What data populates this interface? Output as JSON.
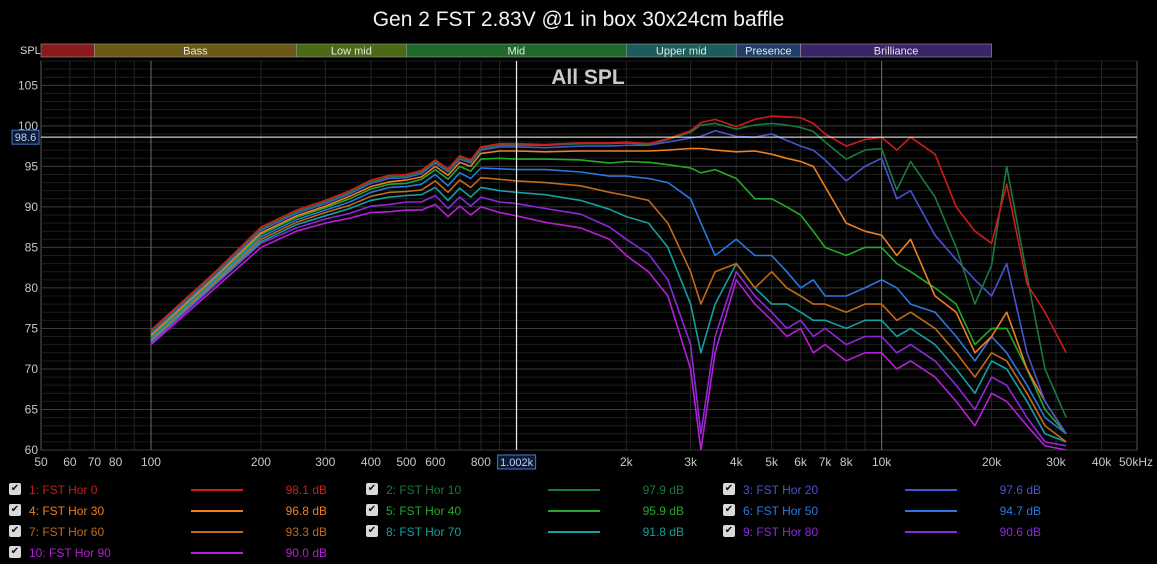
{
  "title": "Gen 2 FST 2.83V @1 in box 30x24cm baffle",
  "chart_data": {
    "type": "line",
    "title": "Gen 2 FST 2.83V @1 in box 30x24cm baffle",
    "plot_label": "All SPL",
    "xlabel": "",
    "ylabel": "SPL",
    "x_scale": "log",
    "xlim": [
      50,
      50000
    ],
    "ylim": [
      60,
      108
    ],
    "grid": true,
    "x_ticks": [
      {
        "v": 50,
        "label": "50"
      },
      {
        "v": 60,
        "label": "60"
      },
      {
        "v": 70,
        "label": "70"
      },
      {
        "v": 80,
        "label": "80"
      },
      {
        "v": 100,
        "label": "100"
      },
      {
        "v": 200,
        "label": "200"
      },
      {
        "v": 300,
        "label": "300"
      },
      {
        "v": 400,
        "label": "400"
      },
      {
        "v": 500,
        "label": "500"
      },
      {
        "v": 600,
        "label": "600"
      },
      {
        "v": 800,
        "label": "800"
      },
      {
        "v": 2000,
        "label": "2k"
      },
      {
        "v": 3000,
        "label": "3k"
      },
      {
        "v": 4000,
        "label": "4k"
      },
      {
        "v": 5000,
        "label": "5k"
      },
      {
        "v": 6000,
        "label": "6k"
      },
      {
        "v": 7000,
        "label": "7k"
      },
      {
        "v": 8000,
        "label": "8k"
      },
      {
        "v": 10000,
        "label": "10k"
      },
      {
        "v": 20000,
        "label": "20k"
      },
      {
        "v": 30000,
        "label": "30k"
      },
      {
        "v": 40000,
        "label": "40k"
      },
      {
        "v": 50000,
        "label": "50kHz"
      }
    ],
    "y_ticks": [
      60,
      65,
      70,
      75,
      80,
      85,
      90,
      95,
      100,
      105
    ],
    "cursor": {
      "x": 1002,
      "x_label": "1.002k",
      "y": 98.6,
      "y_label": "98.6"
    },
    "bands": [
      {
        "label": "",
        "from": 40,
        "to": 70,
        "color": "#8b1a1a"
      },
      {
        "label": "Bass",
        "from": 70,
        "to": 250,
        "color": "#6b5a16"
      },
      {
        "label": "Low mid",
        "from": 250,
        "to": 500,
        "color": "#4c6a16"
      },
      {
        "label": "Mid",
        "from": 500,
        "to": 2000,
        "color": "#1d6a2a"
      },
      {
        "label": "Upper mid",
        "from": 2000,
        "to": 4000,
        "color": "#1a5d5a"
      },
      {
        "label": "Presence",
        "from": 4000,
        "to": 6000,
        "color": "#1d3f6a"
      },
      {
        "label": "Brilliance",
        "from": 6000,
        "to": 20000,
        "color": "#3a2468"
      }
    ],
    "shared_x": [
      100,
      150,
      200,
      250,
      300,
      350,
      400,
      450,
      500,
      550,
      600,
      650,
      700,
      750,
      800,
      900,
      1000,
      1200,
      1500,
      1800,
      2000,
      2300,
      2600,
      3000,
      3200,
      3500,
      4000,
      4500,
      5000,
      5500,
      6000,
      6500,
      7000,
      8000,
      9000,
      10000,
      11000,
      12000,
      14000,
      16000,
      18000,
      20000,
      22000,
      25000,
      28000,
      32000
    ],
    "series": [
      {
        "name": "1: FST Hor 0",
        "value": "98.1 dB",
        "color": "#d01b1b",
        "y": [
          74.8,
          82.0,
          87.5,
          89.6,
          90.8,
          92.0,
          93.3,
          93.9,
          94.0,
          94.5,
          95.8,
          94.7,
          96.3,
          95.8,
          97.4,
          97.8,
          97.8,
          97.7,
          97.9,
          97.9,
          98.0,
          97.8,
          98.4,
          99.4,
          100.4,
          100.8,
          99.9,
          100.8,
          101.2,
          101.1,
          101.0,
          100.3,
          99.0,
          97.5,
          98.3,
          98.6,
          97.0,
          98.6,
          96.5,
          90.0,
          87.0,
          85.5,
          92.8,
          80.5,
          77.0,
          72.0
        ]
      },
      {
        "name": "2: FST Hor 10",
        "value": "97.9 dB",
        "color": "#1a7a3c",
        "y": [
          74.6,
          81.8,
          87.3,
          89.4,
          90.6,
          91.8,
          93.1,
          93.7,
          93.8,
          94.3,
          95.6,
          94.5,
          96.1,
          95.6,
          97.2,
          97.6,
          97.6,
          97.6,
          97.8,
          97.8,
          97.9,
          97.7,
          98.3,
          99.2,
          100.1,
          100.3,
          99.6,
          100.1,
          100.3,
          100.1,
          99.8,
          99.3,
          98.0,
          95.9,
          97.0,
          97.2,
          92.1,
          95.6,
          91.2,
          85.0,
          78.0,
          82.8,
          95.0,
          81.5,
          70.0,
          64.0
        ]
      },
      {
        "name": "3: FST Hor 20",
        "value": "97.6 dB",
        "color": "#4a52d0",
        "y": [
          74.4,
          81.6,
          87.1,
          89.2,
          90.4,
          91.6,
          92.9,
          93.5,
          93.6,
          94.1,
          95.4,
          94.3,
          95.9,
          95.4,
          97.0,
          97.4,
          97.4,
          97.3,
          97.5,
          97.5,
          97.6,
          97.6,
          98.0,
          98.5,
          98.7,
          99.4,
          98.7,
          98.6,
          99.0,
          98.2,
          97.5,
          97.0,
          95.8,
          93.2,
          95.0,
          96.0,
          91.0,
          92.0,
          86.5,
          83.5,
          81.0,
          79.0,
          83.0,
          72.0,
          66.0,
          62.0
        ]
      },
      {
        "name": "4: FST Hor 30",
        "value": "96.8 dB",
        "color": "#ee7f22",
        "y": [
          74.2,
          81.4,
          86.8,
          88.9,
          90.1,
          91.3,
          92.5,
          93.1,
          93.3,
          93.7,
          95.0,
          93.9,
          95.5,
          95.0,
          96.6,
          96.9,
          96.9,
          96.8,
          96.9,
          96.9,
          96.9,
          96.9,
          97.0,
          97.2,
          97.2,
          97.0,
          96.8,
          96.9,
          96.5,
          96.0,
          95.6,
          95.0,
          92.5,
          88.0,
          87.0,
          86.5,
          84.0,
          86.0,
          79.0,
          77.0,
          72.0,
          74.0,
          77.0,
          70.0,
          66.0,
          62.0
        ]
      },
      {
        "name": "5: FST Hor 40",
        "value": "95.9 dB",
        "color": "#22aa2a",
        "y": [
          74.0,
          81.2,
          86.6,
          88.7,
          89.9,
          91.0,
          92.2,
          92.8,
          92.9,
          93.4,
          94.6,
          93.4,
          95.0,
          94.4,
          95.9,
          96.0,
          95.9,
          95.9,
          95.8,
          95.4,
          95.6,
          95.5,
          95.2,
          94.8,
          94.2,
          94.6,
          93.5,
          91.0,
          91.0,
          90.0,
          89.0,
          87.0,
          85.0,
          84.0,
          85.0,
          85.0,
          83.0,
          82.0,
          80.0,
          78.0,
          73.0,
          75.0,
          75.0,
          70.0,
          65.0,
          62.0
        ]
      },
      {
        "name": "6: FST Hor 50",
        "value": "94.7 dB",
        "color": "#2a78e0",
        "y": [
          73.8,
          81.0,
          86.3,
          88.4,
          89.6,
          90.6,
          91.8,
          92.4,
          92.5,
          92.8,
          94.0,
          92.6,
          94.2,
          93.5,
          94.8,
          94.7,
          94.6,
          94.6,
          94.3,
          93.8,
          93.8,
          93.5,
          93.0,
          91.0,
          88.0,
          84.0,
          86.0,
          84.0,
          84.0,
          82.0,
          80.0,
          81.0,
          79.0,
          79.0,
          80.0,
          81.0,
          80.0,
          78.0,
          77.0,
          74.0,
          71.0,
          74.0,
          72.0,
          68.0,
          64.0,
          62.0
        ]
      },
      {
        "name": "7: FST Hor 60",
        "value": "93.3 dB",
        "color": "#c06a1a",
        "y": [
          73.6,
          80.8,
          86.0,
          88.1,
          89.3,
          90.2,
          91.3,
          91.8,
          91.9,
          92.1,
          93.2,
          91.8,
          93.3,
          92.4,
          93.6,
          93.4,
          93.2,
          93.0,
          92.6,
          91.8,
          91.4,
          90.8,
          88.0,
          82.0,
          78.0,
          82.0,
          83.0,
          80.0,
          82.0,
          80.0,
          79.0,
          78.0,
          78.0,
          77.0,
          78.0,
          78.0,
          76.0,
          77.0,
          75.0,
          72.0,
          69.0,
          72.0,
          71.0,
          67.0,
          63.0,
          61.0
        ]
      },
      {
        "name": "8: FST Hor 70",
        "value": "91.8 dB",
        "color": "#14a0a0",
        "y": [
          73.4,
          80.6,
          85.7,
          87.8,
          88.9,
          89.8,
          90.8,
          91.2,
          91.4,
          91.5,
          92.4,
          90.8,
          92.3,
          91.2,
          92.4,
          92.0,
          91.8,
          91.5,
          90.8,
          89.7,
          88.8,
          88.0,
          85.0,
          78.0,
          72.0,
          78.0,
          83.0,
          80.0,
          78.0,
          78.0,
          77.0,
          76.0,
          76.0,
          75.0,
          76.0,
          76.0,
          74.0,
          75.0,
          73.0,
          70.0,
          67.0,
          71.0,
          70.0,
          66.0,
          62.0,
          61.0
        ]
      },
      {
        "name": "9: FST Hor 80",
        "value": "90.6 dB",
        "color": "#8a2ad8",
        "y": [
          73.2,
          80.4,
          85.5,
          87.4,
          88.5,
          89.2,
          90.1,
          90.3,
          90.6,
          90.6,
          91.4,
          89.8,
          91.2,
          90.1,
          91.2,
          90.6,
          90.4,
          89.8,
          89.1,
          87.5,
          86.0,
          84.2,
          81.0,
          73.0,
          62.0,
          74.0,
          82.0,
          79.0,
          77.0,
          75.0,
          76.0,
          74.0,
          75.0,
          73.0,
          74.0,
          74.0,
          72.0,
          73.0,
          71.0,
          68.0,
          65.0,
          69.0,
          68.0,
          64.0,
          61.0,
          60.5
        ]
      },
      {
        "name": "10: FST Hor 90",
        "value": "90.0 dB",
        "color": "#b81ed8",
        "y": [
          73.0,
          80.0,
          85.0,
          87.0,
          88.0,
          88.6,
          89.3,
          89.4,
          89.6,
          89.6,
          90.3,
          88.8,
          90.1,
          89.0,
          90.0,
          89.3,
          88.9,
          88.1,
          87.4,
          86.0,
          84.0,
          82.0,
          79.0,
          70.0,
          60.0,
          72.0,
          81.0,
          78.0,
          76.0,
          74.0,
          75.0,
          72.0,
          73.0,
          71.0,
          72.0,
          72.0,
          70.0,
          71.0,
          69.0,
          66.0,
          63.0,
          67.0,
          66.0,
          63.0,
          60.5,
          60.0
        ]
      }
    ]
  }
}
